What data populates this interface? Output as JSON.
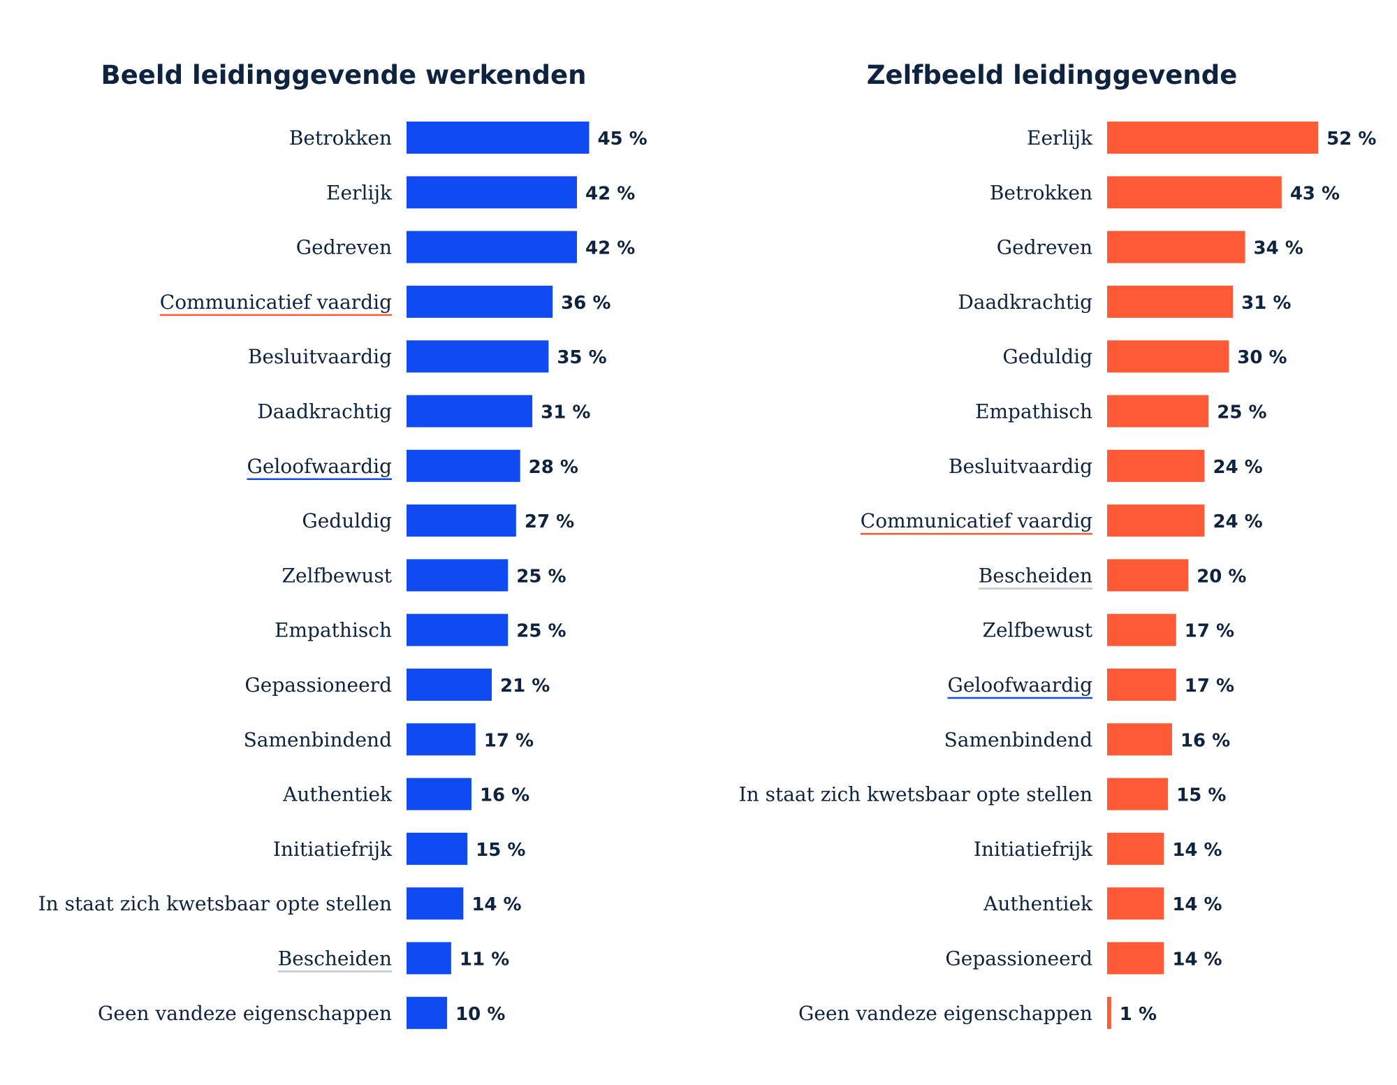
{
  "chart_data": [
    {
      "type": "bar",
      "orientation": "horizontal",
      "title": "Beeld leidinggevende werkenden",
      "xlim": [
        0,
        100
      ],
      "unit": "%",
      "color": "#104bf2",
      "grid": false,
      "categories": [
        "Betrokken",
        "Eerlijk",
        "Gedreven",
        "Communicatief vaardig",
        "Besluitvaardig",
        "Daadkrachtig",
        "Geloofwaardig",
        "Geduldig",
        "Zelfbewust",
        "Empathisch",
        "Gepassioneerd",
        "Samenbindend",
        "Authentiek",
        "Initiatiefrijk",
        "In staat zich kwetsbaar opte stellen",
        "Bescheiden",
        "Geen vandeze eigenschappen"
      ],
      "values": [
        45,
        42,
        42,
        36,
        35,
        31,
        28,
        27,
        25,
        25,
        21,
        17,
        16,
        15,
        14,
        11,
        10
      ],
      "value_labels": [
        "45 %",
        "42 %",
        "42 %",
        "36 %",
        "35 %",
        "31 %",
        "28 %",
        "27 %",
        "25 %",
        "25 %",
        "21 %",
        "17 %",
        "16 %",
        "15 %",
        "14 %",
        "11 %",
        "10 %"
      ],
      "underlines": {
        "Communicatief vaardig": "#ff5a36",
        "Geloofwaardig": "#104bf2",
        "Bescheiden": "#c3c8d0"
      }
    },
    {
      "type": "bar",
      "orientation": "horizontal",
      "title": "Zelfbeeld leidinggevende",
      "xlim": [
        0,
        100
      ],
      "unit": "%",
      "color": "#ff5a36",
      "grid": false,
      "categories": [
        "Eerlijk",
        "Betrokken",
        "Gedreven",
        "Daadkrachtig",
        "Geduldig",
        "Empathisch",
        "Besluitvaardig",
        "Communicatief vaardig",
        "Bescheiden",
        "Zelfbewust",
        "Geloofwaardig",
        "Samenbindend",
        "In staat zich kwetsbaar opte stellen",
        "Initiatiefrijk",
        "Authentiek",
        "Gepassioneerd",
        "Geen vandeze eigenschappen"
      ],
      "values": [
        52,
        43,
        34,
        31,
        30,
        25,
        24,
        24,
        20,
        17,
        17,
        16,
        15,
        14,
        14,
        14,
        1
      ],
      "value_labels": [
        "52 %",
        "43 %",
        "34 %",
        "31 %",
        "30 %",
        "25 %",
        "24 %",
        "24 %",
        "20 %",
        "17 %",
        "17 %",
        "16 %",
        "15 %",
        "14 %",
        "14 %",
        "14 %",
        "1 %"
      ],
      "underlines": {
        "Communicatief vaardig": "#ff5a36",
        "Bescheiden": "#c3c8d0",
        "Geloofwaardig": "#104bf2"
      }
    }
  ]
}
